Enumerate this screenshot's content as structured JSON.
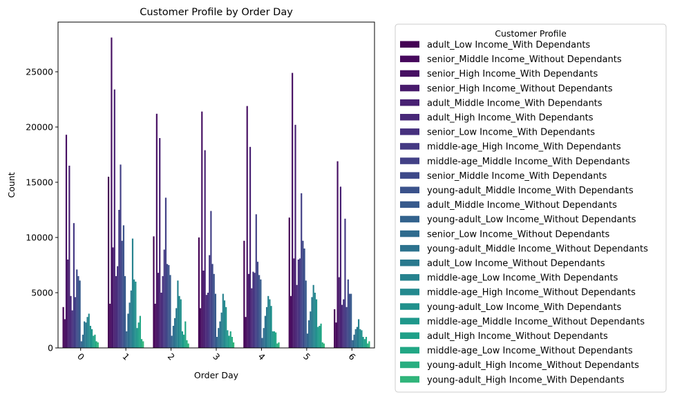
{
  "chart_data": {
    "type": "bar",
    "title": "Customer Profile by Order Day",
    "xlabel": "Order Day",
    "ylabel": "Count",
    "categories": [
      "0",
      "1",
      "2",
      "3",
      "4",
      "5",
      "6"
    ],
    "ylim": [
      0,
      29500
    ],
    "yticks": [
      0,
      5000,
      10000,
      15000,
      20000,
      25000
    ],
    "ytick_labels": [
      "0",
      "5000",
      "10000",
      "15000",
      "20000",
      "25000"
    ],
    "grid": false,
    "legend": {
      "title": "Customer Profile",
      "placement": "outside-right"
    },
    "series": [
      {
        "name": "adult_Low Income_With Dependants",
        "color": "#440154",
        "values": [
          3700,
          15500,
          10100,
          10000,
          9700,
          11800,
          3500
        ]
      },
      {
        "name": "senior_Middle Income_Without Dependants",
        "color": "#46085c",
        "values": [
          2600,
          4000,
          4000,
          3600,
          2800,
          4700,
          2300
        ]
      },
      {
        "name": "senior_High Income_With Dependants",
        "color": "#471063",
        "values": [
          19300,
          28100,
          21200,
          21400,
          21900,
          24900,
          16900
        ]
      },
      {
        "name": "senior_High Income_Without Dependants",
        "color": "#481a6c",
        "values": [
          8000,
          9100,
          6800,
          7000,
          6700,
          8100,
          6400
        ]
      },
      {
        "name": "adult_Middle Income_With Dependants",
        "color": "#482173",
        "values": [
          16500,
          23400,
          19000,
          17900,
          18200,
          20200,
          14600
        ]
      },
      {
        "name": "adult_High Income_With Dependants",
        "color": "#482878",
        "values": [
          4700,
          6500,
          5000,
          4800,
          5400,
          5700,
          3900
        ]
      },
      {
        "name": "senior_Low Income_With Dependants",
        "color": "#46307e",
        "values": [
          3400,
          7400,
          6500,
          5000,
          6900,
          8000,
          4400
        ]
      },
      {
        "name": "middle-age_High Income_With Dependants",
        "color": "#443983",
        "values": [
          11300,
          12500,
          8900,
          8400,
          6800,
          8100,
          11700
        ]
      },
      {
        "name": "middle-age_Middle Income_With Dependants",
        "color": "#424086",
        "values": [
          4600,
          16600,
          13600,
          12400,
          12100,
          14000,
          3700
        ]
      },
      {
        "name": "senior_Middle Income_With Dependants",
        "color": "#3e4989",
        "values": [
          7100,
          9700,
          7600,
          7600,
          7800,
          9700,
          6200
        ]
      },
      {
        "name": "young-adult_Middle Income_With Dependants",
        "color": "#3b528b",
        "values": [
          6500,
          11100,
          7500,
          6700,
          6600,
          9000,
          4900
        ]
      },
      {
        "name": "adult_Middle Income_Without Dependants",
        "color": "#375a8c",
        "values": [
          6100,
          6500,
          6600,
          4900,
          6200,
          6100,
          4900
        ]
      },
      {
        "name": "young-adult_Low Income_Without Dependants",
        "color": "#33638d",
        "values": [
          600,
          1500,
          1100,
          1000,
          900,
          1300,
          700
        ]
      },
      {
        "name": "senior_Low Income_Without Dependants",
        "color": "#2f6b8e",
        "values": [
          1200,
          3100,
          2000,
          1800,
          1800,
          2500,
          1200
        ]
      },
      {
        "name": "young-adult_Middle Income_Without Dependants",
        "color": "#2c728e",
        "values": [
          2400,
          4100,
          2700,
          2400,
          2900,
          3300,
          1700
        ]
      },
      {
        "name": "adult_Low Income_Without Dependants",
        "color": "#29798e",
        "values": [
          2300,
          5200,
          3600,
          3200,
          3700,
          4600,
          1900
        ]
      },
      {
        "name": "middle-age_Low Income_With Dependants",
        "color": "#26828e",
        "values": [
          2800,
          9900,
          6100,
          4900,
          4700,
          5700,
          2600
        ]
      },
      {
        "name": "middle-age_High Income_Without Dependants",
        "color": "#23898e",
        "values": [
          3100,
          6200,
          4700,
          4300,
          4400,
          5000,
          1700
        ]
      },
      {
        "name": "young-adult_Low Income_With Dependants",
        "color": "#21918c",
        "values": [
          2000,
          6000,
          4400,
          3700,
          3800,
          4400,
          1600
        ]
      },
      {
        "name": "middle-age_Middle Income_Without Dependants",
        "color": "#1f988b",
        "values": [
          1700,
          1800,
          1500,
          1600,
          1500,
          1900,
          1000
        ]
      },
      {
        "name": "adult_High Income_Without Dependants",
        "color": "#1fa088",
        "values": [
          1100,
          2300,
          1200,
          1100,
          1500,
          2000,
          800
        ]
      },
      {
        "name": "middle-age_Low Income_Without Dependants",
        "color": "#22a785",
        "values": [
          1200,
          2900,
          2400,
          1500,
          1400,
          2200,
          1000
        ]
      },
      {
        "name": "young-adult_High Income_Without Dependants",
        "color": "#28ae80",
        "values": [
          600,
          800,
          700,
          1000,
          400,
          500,
          400
        ]
      },
      {
        "name": "young-adult_High Income_With Dependants",
        "color": "#31b57b",
        "values": [
          500,
          600,
          400,
          500,
          500,
          400,
          600
        ]
      }
    ]
  }
}
